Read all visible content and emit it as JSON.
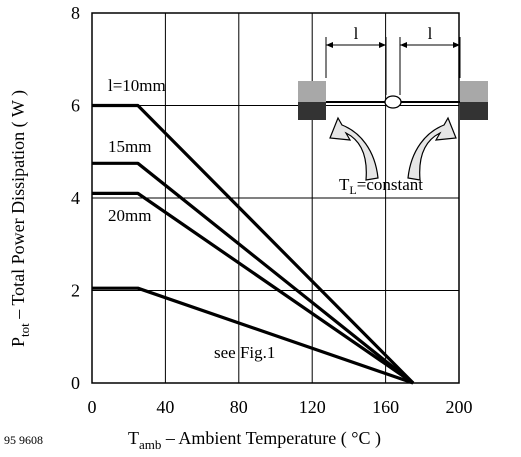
{
  "chart_data": {
    "type": "line",
    "figure_id": "95 9608",
    "xlabel": {
      "main": "T",
      "sub": "amb",
      "rest": " – Ambient Temperature ( °C )"
    },
    "ylabel": {
      "main": "P",
      "sub": "tot",
      "rest": " – Total Power Dissipation ( W )"
    },
    "xlim": [
      0,
      200
    ],
    "ylim": [
      0,
      8
    ],
    "x_ticks": [
      0,
      40,
      80,
      120,
      160,
      200
    ],
    "y_ticks": [
      0,
      2,
      4,
      6,
      8
    ],
    "grid": true,
    "series": [
      {
        "name": "l=10mm",
        "x": [
          0,
          25,
          175
        ],
        "y": [
          6.0,
          6.0,
          0
        ]
      },
      {
        "name": "15mm",
        "x": [
          0,
          25,
          175
        ],
        "y": [
          4.75,
          4.75,
          0
        ]
      },
      {
        "name": "20mm",
        "x": [
          0,
          25,
          175
        ],
        "y": [
          4.1,
          4.1,
          0
        ]
      },
      {
        "name": "see Fig.1",
        "x": [
          0,
          25,
          175
        ],
        "y": [
          2.05,
          2.05,
          0
        ]
      }
    ],
    "inset": {
      "dimension_labels": [
        "l",
        "l"
      ],
      "caption": {
        "main": "T",
        "sub": "L",
        "rest": "=constant"
      }
    }
  }
}
